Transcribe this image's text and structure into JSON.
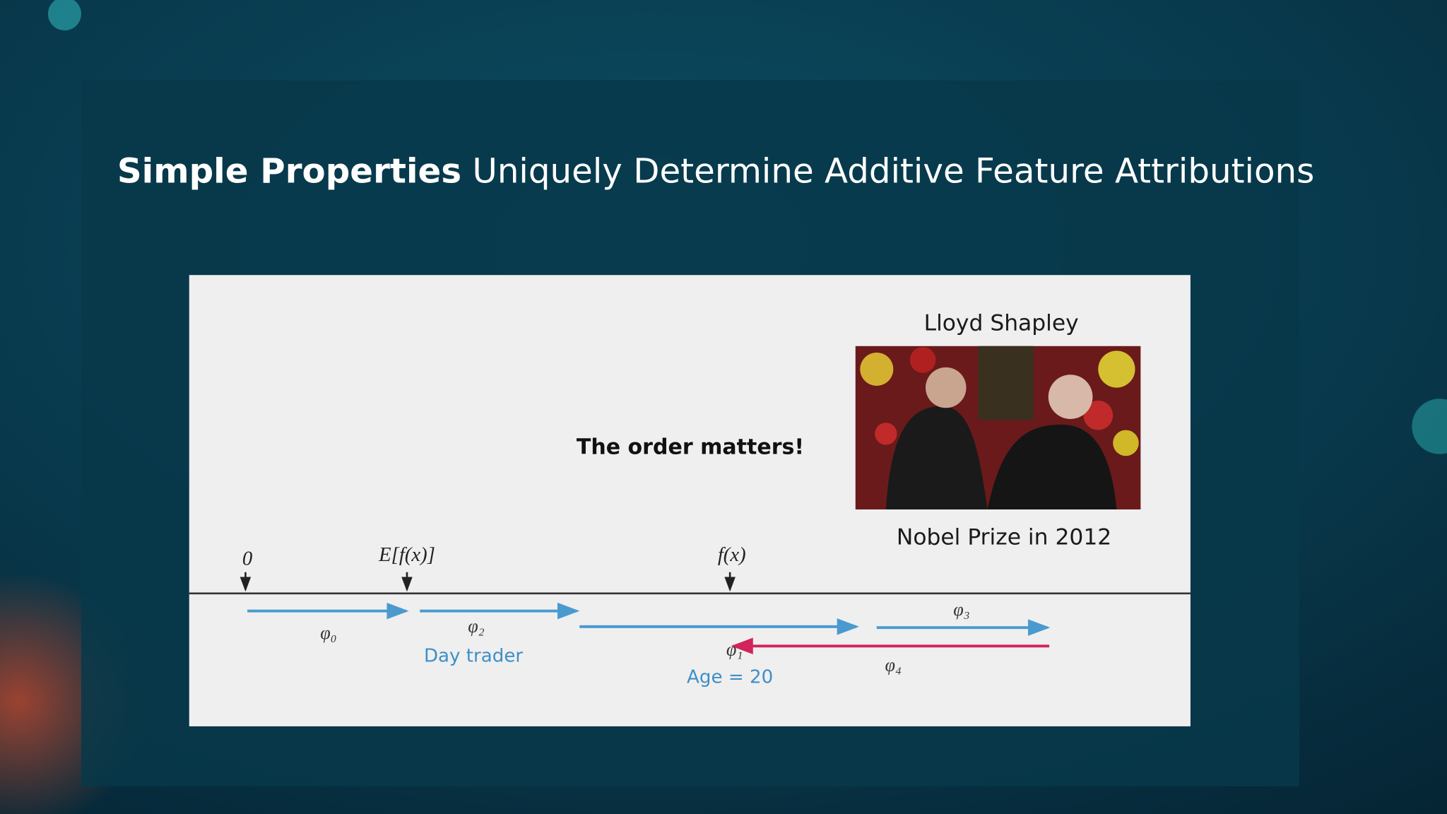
{
  "slide": {
    "title_bold": "Simple Properties",
    "title_rest": "Uniquely Determine Additive Feature Attributions"
  },
  "figure": {
    "photo_title": "Lloyd Shapley",
    "photo_caption": "Nobel Prize in 2012",
    "note": "The order matters!",
    "markers": [
      "0",
      "E[f(x)]",
      "f(x)"
    ],
    "phi_labels": [
      "φ₀",
      "φ₂",
      "φ₁",
      "φ₃",
      "φ₄"
    ],
    "feature_labels": [
      "Day trader",
      "Age = 20"
    ]
  }
}
